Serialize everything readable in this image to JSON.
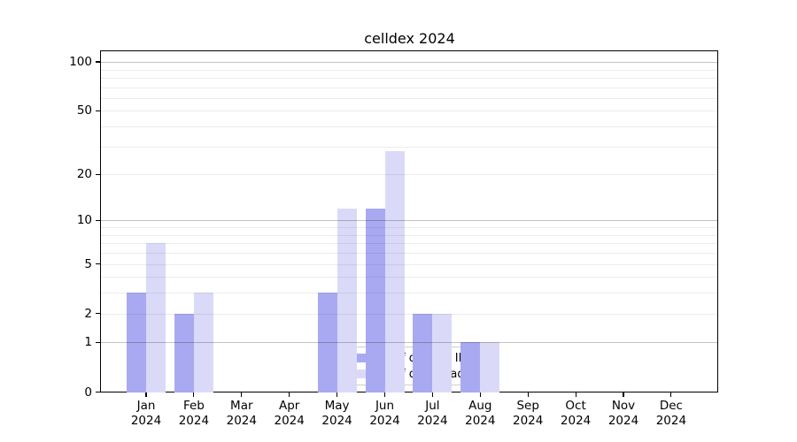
{
  "title": "celldex 2024",
  "chart_data": {
    "type": "bar",
    "title": "celldex 2024",
    "categories": [
      "Jan",
      "Feb",
      "Mar",
      "Apr",
      "May",
      "Jun",
      "Jul",
      "Aug",
      "Sep",
      "Oct",
      "Nov",
      "Dec"
    ],
    "year": "2024",
    "series": [
      {
        "name": "Nb of distinct IPs",
        "color": "#a9a9f1",
        "values": [
          3,
          2,
          0,
          0,
          3,
          12,
          2,
          1,
          0,
          0,
          0,
          0
        ]
      },
      {
        "name": "Nb of downloads",
        "color": "#dadaf8",
        "values": [
          7,
          3,
          0,
          0,
          12,
          28,
          2,
          1,
          0,
          0,
          0,
          0
        ]
      }
    ],
    "xlabel": "",
    "ylabel": "",
    "y_scale": "log10(1+y)",
    "y_ticks": [
      0,
      1,
      2,
      5,
      10,
      20,
      50,
      100
    ],
    "ylim": [
      0,
      110
    ],
    "major_gridlines": [
      1,
      10,
      100
    ],
    "minor_gridlines": [
      2,
      3,
      4,
      5,
      6,
      7,
      8,
      9,
      20,
      30,
      40,
      50,
      60,
      70,
      80,
      90
    ],
    "grid": true,
    "legend_position": "inside-bottom-center"
  }
}
